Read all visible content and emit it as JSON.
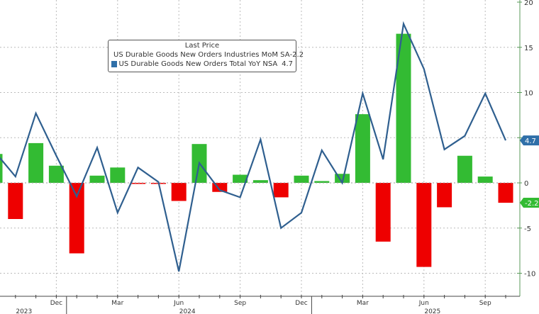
{
  "chart_data": {
    "type": "bar+line",
    "legend_title": "Last Price",
    "legend_placement": "top-left",
    "grid": true,
    "x_labels": [
      "Sep 2023",
      "Oct 2023",
      "Nov 2023",
      "Dec 2023",
      "Jan 2024",
      "Feb 2024",
      "Mar 2024",
      "Apr 2024",
      "May 2024",
      "Jun 2024",
      "Jul 2024",
      "Aug 2024",
      "Sep 2024",
      "Oct 2024",
      "Nov 2024",
      "Dec 2024",
      "Jan 2025",
      "Feb 2025",
      "Mar 2025",
      "Apr 2025",
      "May 2025",
      "Jun 2025",
      "Jul 2025",
      "Aug 2025",
      "Sep 2025",
      "Oct 2025"
    ],
    "x_ticks": [
      {
        "label": "Dec",
        "index": 3
      },
      {
        "label": "Mar",
        "index": 6
      },
      {
        "label": "Jun",
        "index": 9
      },
      {
        "label": "Sep",
        "index": 12
      },
      {
        "label": "Dec",
        "index": 15
      },
      {
        "label": "Mar",
        "index": 18
      },
      {
        "label": "Jun",
        "index": 21
      },
      {
        "label": "Sep",
        "index": 24
      }
    ],
    "year_labels": [
      {
        "label": "2023",
        "index": 1
      },
      {
        "label": "2024",
        "index": 9
      },
      {
        "label": "2025",
        "index": 21
      }
    ],
    "ylim": [
      -11,
      20
    ],
    "y_ticks": [
      20,
      15,
      10,
      5,
      0,
      -5,
      -10
    ],
    "y_axis_position": "right",
    "series": [
      {
        "name": "US Durable Goods New Orders Industries MoM SA",
        "type": "bar",
        "last": "-2.2",
        "color": "#33bb33",
        "negative_color": "#ee0000",
        "values": [
          3.2,
          -4.0,
          4.4,
          1.9,
          -7.8,
          0.8,
          1.7,
          -0.1,
          -0.1,
          -2.0,
          4.3,
          -1.0,
          0.9,
          0.3,
          -1.6,
          0.8,
          0.2,
          1.0,
          7.6,
          -6.5,
          16.5,
          -9.3,
          -2.7,
          3.0,
          0.7,
          -2.2
        ]
      },
      {
        "name": "US Durable Goods New Orders Total YoY NSA",
        "type": "line",
        "last": "4.7",
        "color": "#2f5f8f",
        "values": [
          3.4,
          0.7,
          7.7,
          3.0,
          -1.5,
          3.9,
          -3.3,
          1.7,
          0.1,
          -9.8,
          2.2,
          -0.8,
          -1.6,
          4.8,
          -5.0,
          -3.3,
          3.6,
          0.0,
          9.9,
          2.6,
          17.6,
          12.6,
          3.7,
          5.2,
          9.9,
          4.7
        ]
      }
    ]
  }
}
